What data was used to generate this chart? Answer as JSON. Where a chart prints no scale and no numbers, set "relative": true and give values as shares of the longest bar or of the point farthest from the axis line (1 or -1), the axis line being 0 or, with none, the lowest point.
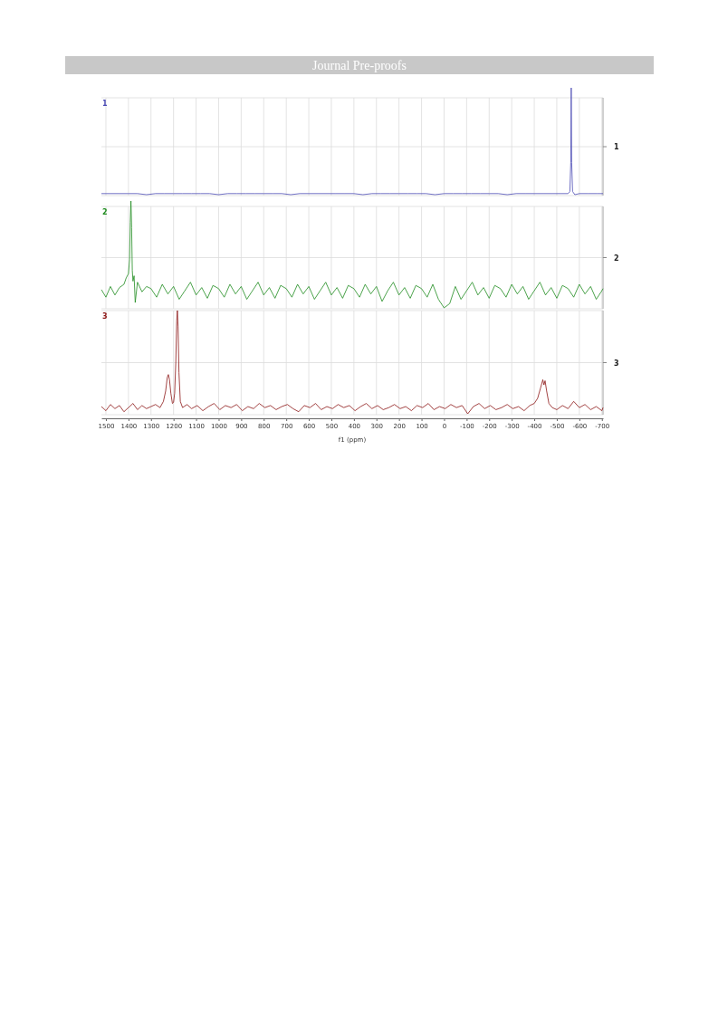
{
  "chart_data": [
    {
      "type": "line",
      "title": "Journal Pre-proofs",
      "relative": true,
      "grid": "x",
      "tick_labels": false,
      "xlim": [
        1520,
        -705
      ],
      "xticks": [
        1500,
        1400,
        1300,
        1200,
        1100,
        1000,
        900,
        800,
        700,
        600,
        500,
        400,
        300,
        200,
        100,
        0,
        -100,
        -200,
        -300,
        -400,
        -500,
        -600,
        -700
      ],
      "annotations": [
        "1"
      ],
      "x": [
        1520,
        1480,
        1440,
        1400,
        1360,
        1320,
        1280,
        1240,
        1200,
        1160,
        1120,
        1080,
        1040,
        1000,
        960,
        920,
        880,
        840,
        800,
        760,
        720,
        680,
        640,
        600,
        560,
        520,
        480,
        440,
        400,
        360,
        320,
        280,
        240,
        200,
        160,
        120,
        80,
        40,
        0,
        -40,
        -80,
        -120,
        -160,
        -200,
        -240,
        -280,
        -320,
        -360,
        -400,
        -440,
        -480,
        -520,
        -550,
        -558,
        -562,
        -564,
        -566,
        -570,
        -580,
        -600,
        -640,
        -680,
        -705
      ],
      "series": [
        {
          "name": "1",
          "color": "#4a4ab4",
          "values": [
            0.01,
            0.01,
            0.01,
            0.01,
            0.01,
            0,
            0.01,
            0.01,
            0.01,
            0.01,
            0.01,
            0.01,
            0.01,
            0,
            0.01,
            0.01,
            0.01,
            0.01,
            0.01,
            0.01,
            0.01,
            0,
            0.01,
            0.01,
            0.01,
            0.01,
            0.01,
            0.01,
            0.01,
            0,
            0.01,
            0.01,
            0.01,
            0.01,
            0.01,
            0.01,
            0.01,
            0,
            0.01,
            0.01,
            0.01,
            0.01,
            0.01,
            0.01,
            0.01,
            0,
            0.01,
            0.01,
            0.01,
            0.01,
            0.01,
            0.01,
            0.01,
            0.03,
            0.3,
            1,
            0.3,
            0.03,
            0,
            0.01,
            0.01,
            0.01,
            0.01
          ]
        }
      ]
    },
    {
      "type": "line",
      "relative": true,
      "grid": "x",
      "tick_labels": false,
      "xlim": [
        1520,
        -705
      ],
      "xticks": [
        1500,
        1400,
        1300,
        1200,
        1100,
        1000,
        900,
        800,
        700,
        600,
        500,
        400,
        300,
        200,
        100,
        0,
        -100,
        -200,
        -300,
        -400,
        -500,
        -600,
        -700
      ],
      "annotations": [
        "2"
      ],
      "x": [
        1520,
        1500,
        1480,
        1460,
        1440,
        1420,
        1410,
        1400,
        1395,
        1392,
        1389,
        1386,
        1383,
        1380,
        1375,
        1370,
        1360,
        1340,
        1320,
        1300,
        1275,
        1250,
        1225,
        1200,
        1175,
        1150,
        1125,
        1100,
        1075,
        1050,
        1025,
        1000,
        975,
        950,
        925,
        900,
        875,
        850,
        825,
        800,
        775,
        750,
        725,
        700,
        675,
        650,
        625,
        600,
        575,
        550,
        525,
        500,
        475,
        450,
        425,
        400,
        375,
        350,
        325,
        300,
        275,
        250,
        225,
        200,
        175,
        150,
        125,
        100,
        75,
        50,
        25,
        0,
        -25,
        -50,
        -75,
        -100,
        -125,
        -150,
        -175,
        -200,
        -225,
        -250,
        -275,
        -300,
        -325,
        -350,
        -375,
        -400,
        -425,
        -450,
        -475,
        -500,
        -525,
        -550,
        -575,
        -600,
        -625,
        -650,
        -675,
        -700,
        -705
      ],
      "series": [
        {
          "name": "2",
          "color": "#1e8c1e",
          "values": [
            0.17,
            0.1,
            0.2,
            0.12,
            0.19,
            0.22,
            0.28,
            0.32,
            0.45,
            0.8,
            1,
            0.75,
            0.35,
            0.25,
            0.3,
            0.05,
            0.24,
            0.15,
            0.2,
            0.18,
            0.1,
            0.22,
            0.13,
            0.2,
            0.08,
            0.16,
            0.24,
            0.12,
            0.19,
            0.09,
            0.21,
            0.18,
            0.1,
            0.22,
            0.13,
            0.2,
            0.08,
            0.16,
            0.24,
            0.12,
            0.19,
            0.09,
            0.21,
            0.18,
            0.1,
            0.22,
            0.13,
            0.2,
            0.08,
            0.16,
            0.24,
            0.12,
            0.19,
            0.09,
            0.21,
            0.18,
            0.1,
            0.22,
            0.13,
            0.2,
            0.06,
            0.16,
            0.24,
            0.12,
            0.19,
            0.09,
            0.21,
            0.18,
            0.1,
            0.22,
            0.08,
            0,
            0.04,
            0.2,
            0.08,
            0.16,
            0.24,
            0.12,
            0.19,
            0.09,
            0.21,
            0.18,
            0.1,
            0.22,
            0.13,
            0.2,
            0.08,
            0.16,
            0.24,
            0.12,
            0.19,
            0.09,
            0.21,
            0.18,
            0.1,
            0.22,
            0.13,
            0.2,
            0.08,
            0.16,
            0.18
          ]
        }
      ]
    },
    {
      "type": "line",
      "relative": true,
      "grid": "x",
      "tick_labels": "x",
      "xlabel": "f1 (ppm)",
      "xlim": [
        1520,
        -705
      ],
      "xticks": [
        1500,
        1400,
        1300,
        1200,
        1100,
        1000,
        900,
        800,
        700,
        600,
        500,
        400,
        300,
        200,
        100,
        0,
        -100,
        -200,
        -300,
        -400,
        -500,
        -600,
        -700
      ],
      "annotations": [
        "3"
      ],
      "x": [
        1520,
        1500,
        1480,
        1460,
        1440,
        1420,
        1400,
        1380,
        1360,
        1340,
        1320,
        1300,
        1280,
        1260,
        1245,
        1235,
        1228,
        1223,
        1218,
        1212,
        1205,
        1200,
        1195,
        1190,
        1186,
        1183,
        1180,
        1176,
        1170,
        1160,
        1140,
        1120,
        1095,
        1070,
        1045,
        1020,
        995,
        970,
        945,
        920,
        895,
        870,
        845,
        820,
        795,
        770,
        745,
        720,
        695,
        670,
        645,
        620,
        595,
        570,
        545,
        520,
        495,
        470,
        445,
        420,
        395,
        370,
        345,
        320,
        295,
        270,
        245,
        220,
        195,
        170,
        145,
        120,
        95,
        70,
        45,
        20,
        -5,
        -30,
        -55,
        -80,
        -105,
        -130,
        -155,
        -180,
        -205,
        -230,
        -255,
        -280,
        -305,
        -330,
        -355,
        -380,
        -400,
        -415,
        -428,
        -438,
        -443,
        -448,
        -455,
        -465,
        -480,
        -500,
        -525,
        -550,
        -575,
        -600,
        -625,
        -650,
        -675,
        -700,
        -705
      ],
      "series": [
        {
          "name": "3",
          "color": "#8c1414",
          "values": [
            0.07,
            0.03,
            0.09,
            0.05,
            0.08,
            0.02,
            0.06,
            0.1,
            0.04,
            0.08,
            0.05,
            0.07,
            0.09,
            0.06,
            0.12,
            0.22,
            0.35,
            0.38,
            0.33,
            0.2,
            0.1,
            0.11,
            0.2,
            0.5,
            0.9,
            1,
            0.85,
            0.4,
            0.12,
            0.06,
            0.09,
            0.05,
            0.08,
            0.03,
            0.07,
            0.1,
            0.04,
            0.08,
            0.06,
            0.09,
            0.03,
            0.07,
            0.05,
            0.1,
            0.06,
            0.08,
            0.04,
            0.07,
            0.09,
            0.05,
            0.02,
            0.08,
            0.06,
            0.1,
            0.04,
            0.07,
            0.05,
            0.09,
            0.06,
            0.08,
            0.03,
            0.07,
            0.1,
            0.05,
            0.08,
            0.04,
            0.06,
            0.09,
            0.05,
            0.07,
            0.03,
            0.08,
            0.06,
            0.1,
            0.04,
            0.07,
            0.05,
            0.09,
            0.06,
            0.08,
            0,
            0.07,
            0.1,
            0.05,
            0.08,
            0.04,
            0.06,
            0.09,
            0.05,
            0.07,
            0.03,
            0.08,
            0.1,
            0.15,
            0.25,
            0.33,
            0.28,
            0.32,
            0.22,
            0.1,
            0.06,
            0.04,
            0.08,
            0.05,
            0.12,
            0.06,
            0.09,
            0.04,
            0.07,
            0.03,
            0.06
          ]
        }
      ]
    }
  ]
}
